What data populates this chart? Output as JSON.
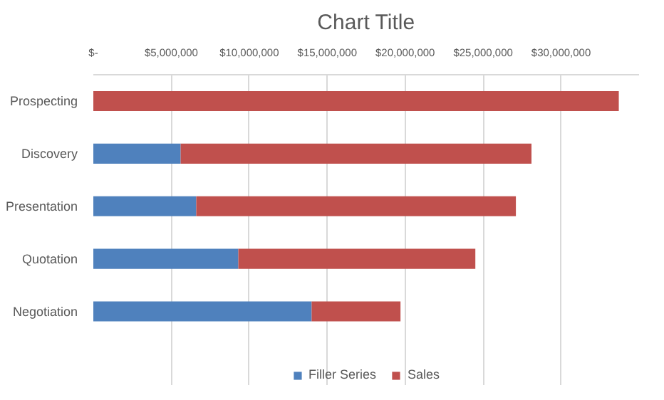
{
  "chart_data": {
    "type": "bar",
    "orientation": "horizontal",
    "stacked": true,
    "title": "Chart Title",
    "categories": [
      "Prospecting",
      "Discovery",
      "Presentation",
      "Quotation",
      "Negotiation"
    ],
    "series": [
      {
        "name": "Filler Series",
        "color": "#4f81bd",
        "values": [
          0,
          5600000,
          6600000,
          9300000,
          14000000
        ]
      },
      {
        "name": "Sales",
        "color": "#c0504d",
        "values": [
          33700000,
          22500000,
          20500000,
          15200000,
          5700000
        ]
      }
    ],
    "xlim": [
      0,
      35000000
    ],
    "xticks": [
      {
        "value": 0,
        "label": "$-"
      },
      {
        "value": 5000000,
        "label": "$5,000,000"
      },
      {
        "value": 10000000,
        "label": "$10,000,000"
      },
      {
        "value": 15000000,
        "label": "$15,000,000"
      },
      {
        "value": 20000000,
        "label": "$20,000,000"
      },
      {
        "value": 25000000,
        "label": "$25,000,000"
      },
      {
        "value": 30000000,
        "label": "$30,000,000"
      }
    ],
    "grid": "x",
    "legend": "bottom"
  }
}
